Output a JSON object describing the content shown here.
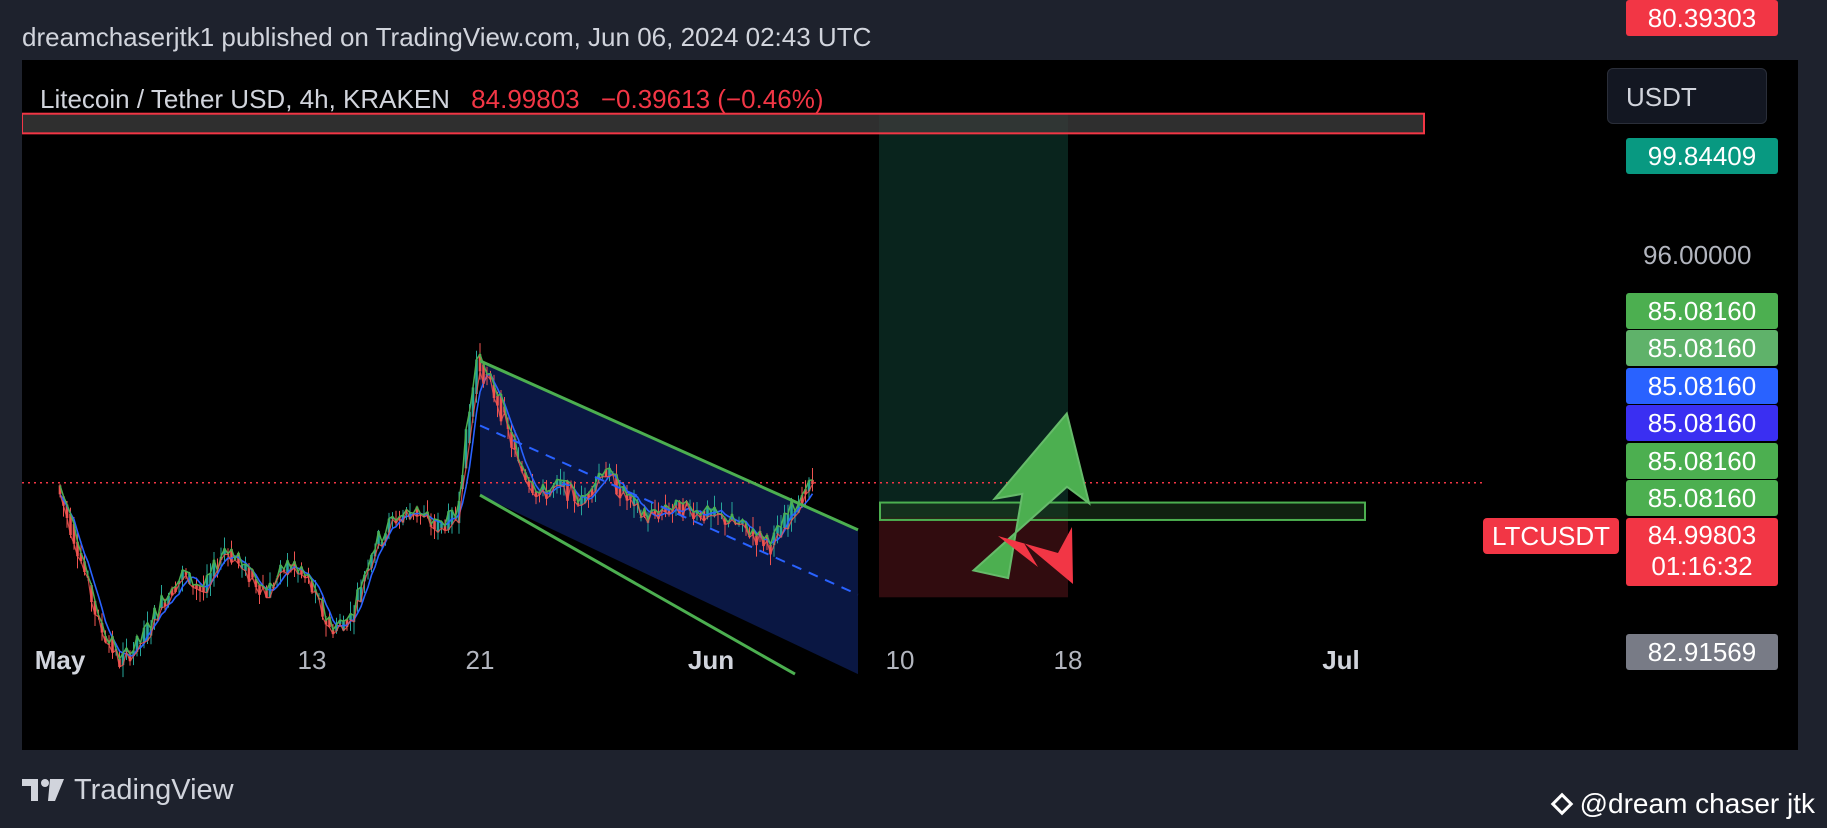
{
  "header": {
    "publisher_line": "dreamchaserjtk1 published on TradingView.com, Jun 06, 2024 02:43 UTC"
  },
  "symbol": {
    "name": "Litecoin / Tether USD, 4h, KRAKEN",
    "last": "84.99803",
    "change": "−0.39613 (−0.46%)"
  },
  "currency_button": {
    "label": "USDT"
  },
  "price_badges": [
    {
      "label": "99.84409",
      "color": "#089981"
    },
    {
      "label": "85.08160",
      "color": "#4caf50"
    },
    {
      "label": "85.08160",
      "color": "#5fb26a"
    },
    {
      "label": "85.08160",
      "color": "#2962ff"
    },
    {
      "label": "85.08160",
      "color": "#3a2ff2"
    },
    {
      "label": "85.08160",
      "color": "#4caf50"
    },
    {
      "label": "85.08160",
      "color": "#4caf50"
    },
    {
      "label": "82.91569",
      "color": "#787b86"
    },
    {
      "label": "80.39303",
      "color": "#f23645"
    }
  ],
  "current_price": {
    "label": "84.99803",
    "countdown": "01:16:32",
    "color": "#f23645"
  },
  "ticker_label": "LTCUSDT",
  "y_axis_label": "96.00000",
  "colors": {
    "up": "#26a69a",
    "down": "#ef5350",
    "channel_line": "#4caf50",
    "arrow_green": "#4caf50",
    "arrow_red": "#f23645",
    "resistance_border": "#f23645",
    "price_line": "#f23645"
  },
  "chart_data": {
    "type": "line",
    "title": "Litecoin / Tether USD, 4h, KRAKEN",
    "x_ticks": [
      "May",
      "13",
      "21",
      "Jun",
      "10",
      "18",
      "Jul"
    ],
    "x_tick_dates": [
      "2024-05-01",
      "2024-05-13",
      "2024-05-21",
      "2024-06-01",
      "2024-06-10",
      "2024-06-18",
      "2024-07-01"
    ],
    "ylim": [
      76.5,
      102
    ],
    "y_ticks": [
      96
    ],
    "series": [
      {
        "values": [
          {
            "date": "2024-05-01",
            "price": 84.9
          },
          {
            "date": "2024-05-02",
            "price": 82.4
          },
          {
            "date": "2024-05-03",
            "price": 79.3
          },
          {
            "date": "2024-05-04",
            "price": 77.8
          },
          {
            "date": "2024-05-05",
            "price": 78.6
          },
          {
            "date": "2024-05-06",
            "price": 80.2
          },
          {
            "date": "2024-05-07",
            "price": 81.3
          },
          {
            "date": "2024-05-08",
            "price": 80.6
          },
          {
            "date": "2024-05-09",
            "price": 82.4
          },
          {
            "date": "2024-05-10",
            "price": 81.4
          },
          {
            "date": "2024-05-11",
            "price": 80.6
          },
          {
            "date": "2024-05-12",
            "price": 81.7
          },
          {
            "date": "2024-05-13",
            "price": 81.0
          },
          {
            "date": "2024-05-14",
            "price": 79.1
          },
          {
            "date": "2024-05-15",
            "price": 79.6
          },
          {
            "date": "2024-05-16",
            "price": 82.3
          },
          {
            "date": "2024-05-17",
            "price": 83.5
          },
          {
            "date": "2024-05-18",
            "price": 83.9
          },
          {
            "date": "2024-05-19",
            "price": 83.2
          },
          {
            "date": "2024-05-20",
            "price": 83.6
          },
          {
            "date": "2024-05-21",
            "price": 89.9
          },
          {
            "date": "2024-05-22",
            "price": 88.3
          },
          {
            "date": "2024-05-23",
            "price": 85.7
          },
          {
            "date": "2024-05-24",
            "price": 84.5
          },
          {
            "date": "2024-05-25",
            "price": 84.9
          },
          {
            "date": "2024-05-26",
            "price": 84.2
          },
          {
            "date": "2024-05-27",
            "price": 85.6
          },
          {
            "date": "2024-05-28",
            "price": 84.5
          },
          {
            "date": "2024-05-29",
            "price": 83.6
          },
          {
            "date": "2024-05-30",
            "price": 83.9
          },
          {
            "date": "2024-05-31",
            "price": 84.0
          },
          {
            "date": "2024-06-01",
            "price": 83.7
          },
          {
            "date": "2024-06-02",
            "price": 83.5
          },
          {
            "date": "2024-06-03",
            "price": 83.0
          },
          {
            "date": "2024-06-04",
            "price": 82.5
          },
          {
            "date": "2024-06-05",
            "price": 83.9
          },
          {
            "date": "2024-06-06",
            "price": 85.0
          }
        ]
      }
    ],
    "annotations": {
      "resistance_zone": {
        "from": 99.05,
        "to": 99.84
      },
      "entry_zone": {
        "from": 83.5,
        "to": 84.2
      },
      "long_position": {
        "start": "2024-06-09",
        "end": "2024-06-18",
        "entry": 83.6,
        "target": 99.84,
        "stop": 80.39
      },
      "descending_channel": {
        "upper": [
          {
            "date": "2024-05-21",
            "price": 89.9
          },
          {
            "date": "2024-06-08",
            "price": 83.1
          }
        ],
        "lower": [
          {
            "date": "2024-05-21",
            "price": 84.5
          },
          {
            "date": "2024-06-05",
            "price": 77.3
          }
        ],
        "mid_dashed": [
          {
            "date": "2024-05-21",
            "price": 87.3
          },
          {
            "date": "2024-06-08",
            "price": 80.5
          }
        ]
      },
      "current_price_line": 84.99803
    }
  },
  "footer": {
    "brand": "TradingView",
    "watermark": "@dream chaser jtk"
  }
}
